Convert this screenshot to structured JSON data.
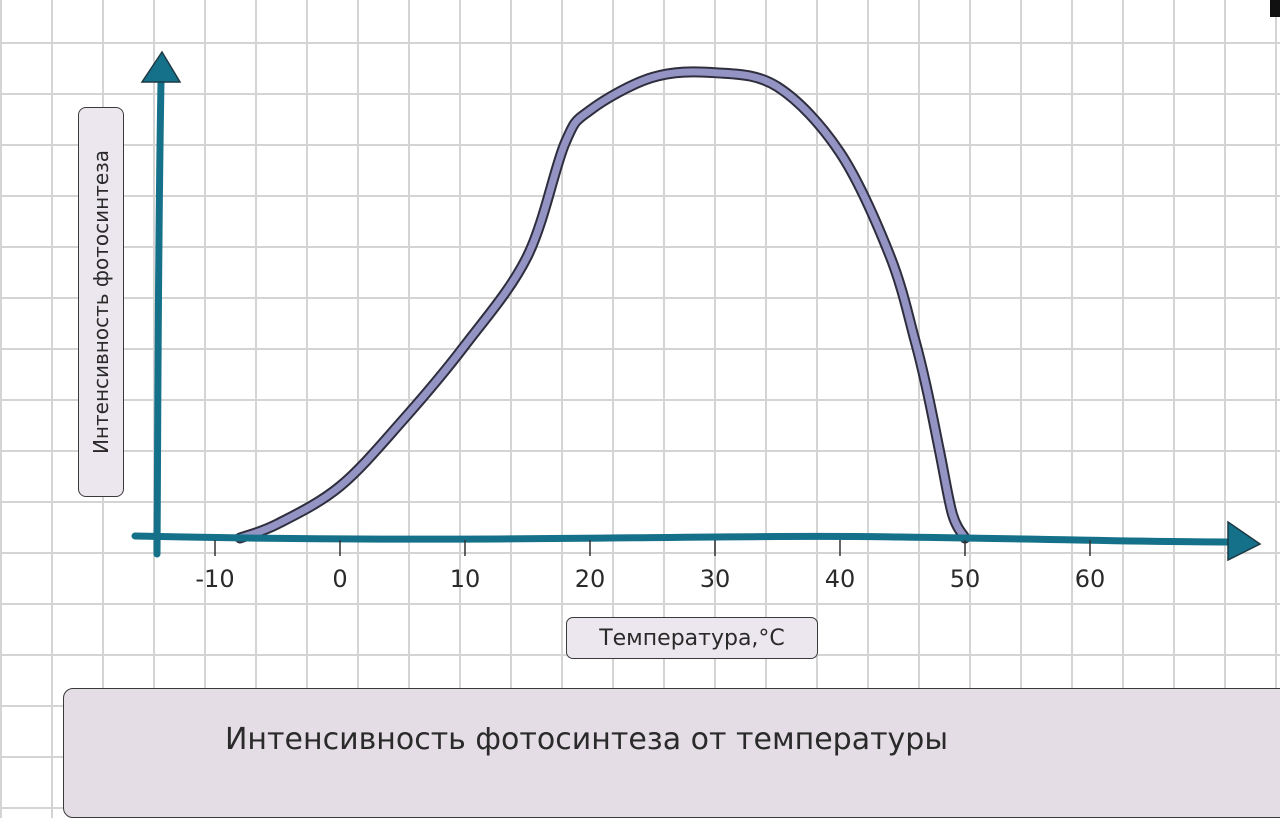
{
  "chart_data": {
    "type": "line",
    "title": "Интенсивность фотосинтеза от температуры",
    "xlabel": "Температура,°C",
    "ylabel": "Интенсивность фотосинтеза",
    "xticks": [
      "-10",
      "0",
      "10",
      "20",
      "30",
      "40",
      "50",
      "60"
    ],
    "xlim": [
      -14,
      69
    ],
    "ylim": [
      0,
      100
    ],
    "grid": true,
    "series": [
      {
        "color": "#9494c4",
        "x": [
          -8,
          -5,
          0,
          5,
          10,
          15,
          18,
          20,
          25,
          30,
          35,
          40,
          44,
          46,
          47,
          48,
          49,
          50
        ],
        "y": [
          0,
          3,
          11,
          25,
          41,
          60,
          84,
          91,
          98,
          99,
          96,
          82,
          60,
          42,
          31,
          18,
          5,
          0
        ]
      }
    ]
  },
  "colors": {
    "axis": "#15708a",
    "curve": "#9494c4"
  }
}
